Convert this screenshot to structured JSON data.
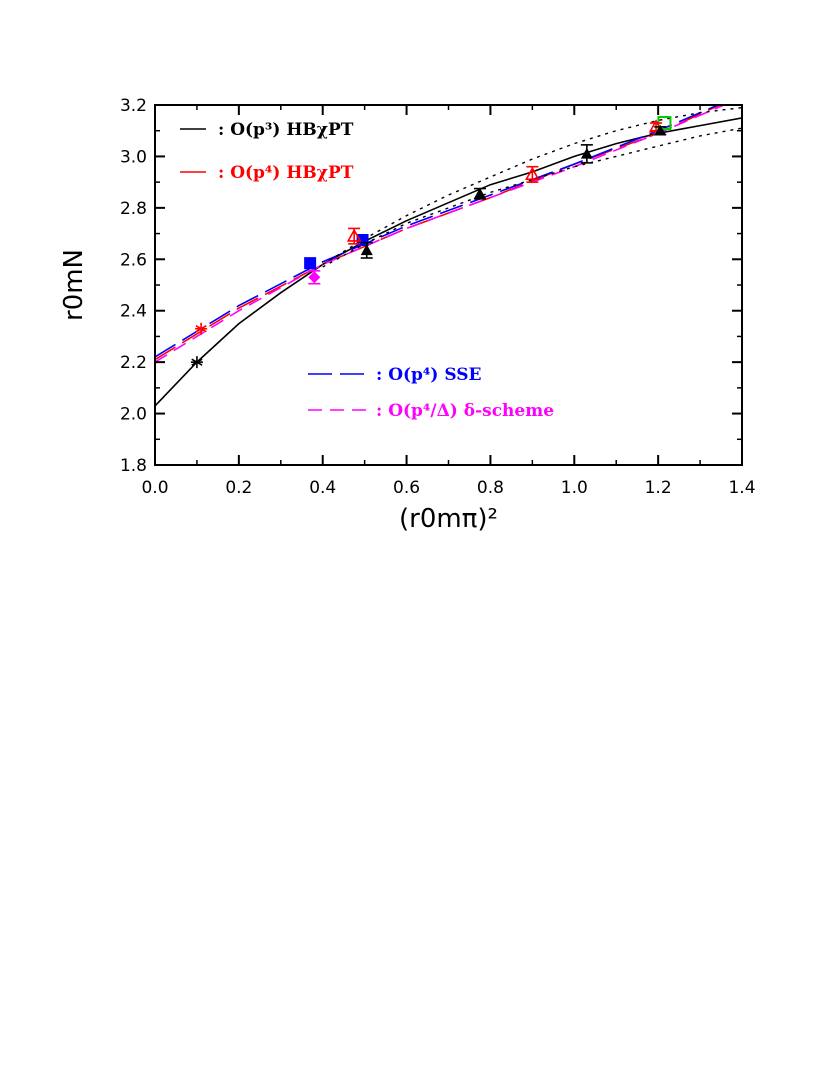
{
  "chart_data": {
    "type": "scatter",
    "title": "",
    "xlabel": "(r0mπ)²",
    "ylabel": "r0mN",
    "xlim": [
      0.0,
      1.4
    ],
    "ylim": [
      1.8,
      3.2
    ],
    "x_ticks": [
      "0.0",
      "0.2",
      "0.4",
      "0.6",
      "0.8",
      "1.0",
      "1.2",
      "1.4"
    ],
    "y_ticks": [
      "1.8",
      "2.0",
      "2.2",
      "2.4",
      "2.6",
      "2.8",
      "3.0",
      "3.2"
    ],
    "grid": false,
    "curves": [
      {
        "legend": ": O(p³) HBχPT",
        "color": "#000000",
        "dash": "solid",
        "x": [
          0.0,
          0.1,
          0.2,
          0.3,
          0.4,
          0.5,
          0.6,
          0.7,
          0.8,
          0.9,
          1.0,
          1.1,
          1.2,
          1.3,
          1.4
        ],
        "y": [
          2.03,
          2.2,
          2.35,
          2.47,
          2.58,
          2.67,
          2.75,
          2.82,
          2.89,
          2.94,
          3.0,
          3.05,
          3.09,
          3.12,
          3.15
        ]
      },
      {
        "legend": ": O(p⁴) HBχPT",
        "color": "#ff0000",
        "dash": "long-dash",
        "x": [
          0.0,
          0.2,
          0.4,
          0.6,
          0.8,
          1.0,
          1.2,
          1.4
        ],
        "y": [
          2.21,
          2.41,
          2.58,
          2.72,
          2.84,
          2.97,
          3.09,
          3.24
        ]
      },
      {
        "legend": ": O(p⁴) SSE",
        "color": "#0000ff",
        "dash": "long-dash",
        "x": [
          0.0,
          0.2,
          0.4,
          0.6,
          0.8,
          1.0,
          1.2,
          1.4
        ],
        "y": [
          2.22,
          2.42,
          2.59,
          2.73,
          2.85,
          2.97,
          3.1,
          3.24
        ]
      },
      {
        "legend": ": O(p⁴/Δ) δ-scheme",
        "color": "#ff00ff",
        "dash": "dash",
        "x": [
          0.0,
          0.2,
          0.4,
          0.6,
          0.8,
          1.0,
          1.2,
          1.4
        ],
        "y": [
          2.2,
          2.4,
          2.58,
          2.72,
          2.84,
          2.96,
          3.09,
          3.23
        ]
      }
    ],
    "error_band": {
      "color": "#000000",
      "dash": "dotted",
      "upper": {
        "x": [
          0.4,
          0.5,
          0.6,
          0.7,
          0.8,
          0.9,
          1.0,
          1.1,
          1.2,
          1.3,
          1.4
        ],
        "y": [
          2.58,
          2.68,
          2.77,
          2.85,
          2.92,
          2.99,
          3.05,
          3.1,
          3.14,
          3.17,
          3.19
        ]
      },
      "lower": {
        "x": [
          0.4,
          0.5,
          0.6,
          0.7,
          0.8,
          0.9,
          1.0,
          1.1,
          1.2,
          1.3,
          1.4
        ],
        "y": [
          2.57,
          2.66,
          2.74,
          2.8,
          2.86,
          2.91,
          2.96,
          3.0,
          3.04,
          3.08,
          3.11
        ]
      }
    },
    "points": [
      {
        "marker": "asterisk",
        "color": "#000000",
        "x": 0.1,
        "y": 2.2,
        "err": 0
      },
      {
        "marker": "asterisk",
        "color": "#ff0000",
        "x": 0.11,
        "y": 2.33,
        "err": 0
      },
      {
        "marker": "filled-square",
        "color": "#0000ff",
        "x": 0.37,
        "y": 2.585,
        "err": 0
      },
      {
        "marker": "filled-square",
        "color": "#0000ff",
        "x": 0.495,
        "y": 2.675,
        "err": 0
      },
      {
        "marker": "filled-diamond",
        "color": "#ff00ff",
        "x": 0.38,
        "y": 2.53,
        "err": 0.025
      },
      {
        "marker": "open-triangle",
        "color": "#ff0000",
        "x": 0.475,
        "y": 2.69,
        "err": 0.03
      },
      {
        "marker": "filled-triangle",
        "color": "#000000",
        "x": 0.505,
        "y": 2.635,
        "err": 0.03
      },
      {
        "marker": "filled-triangle",
        "color": "#000000",
        "x": 0.775,
        "y": 2.855,
        "err": 0.02
      },
      {
        "marker": "open-triangle",
        "color": "#ff0000",
        "x": 0.9,
        "y": 2.93,
        "err": 0.03
      },
      {
        "marker": "filled-triangle",
        "color": "#000000",
        "x": 1.03,
        "y": 3.01,
        "err": 0.035
      },
      {
        "marker": "open-square",
        "color": "#00cc00",
        "x": 1.215,
        "y": 3.13,
        "err": 0
      },
      {
        "marker": "open-triangle",
        "color": "#ff0000",
        "x": 1.195,
        "y": 3.115,
        "err": 0.015
      },
      {
        "marker": "filled-triangle",
        "color": "#000000",
        "x": 1.205,
        "y": 3.1,
        "err": 0.015
      }
    ]
  }
}
